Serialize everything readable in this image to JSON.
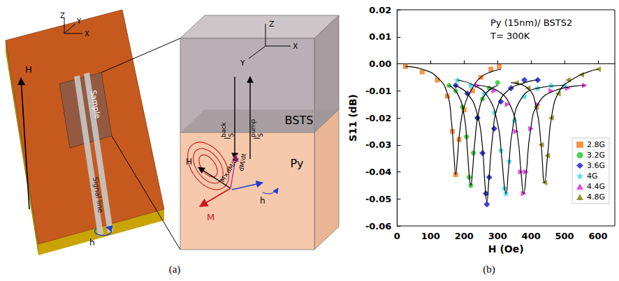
{
  "captions": [
    "(a)",
    "(b)"
  ],
  "diagram": {
    "board": {
      "axes": [
        "Z",
        "Y",
        "X"
      ],
      "field": "H",
      "sample": "Sample",
      "signal_line": "Signal line",
      "rf_field": "h"
    },
    "stack": {
      "axes": [
        "Z",
        "X",
        "Y"
      ],
      "top_layer": "BSTS",
      "bottom_layer": "Py",
      "spin_back": {
        "base": "I",
        "sub": "S",
        "sup": "back"
      },
      "spin_pump": {
        "base": "I",
        "sub": "S",
        "sup": "pump"
      },
      "field": "H",
      "magnetization": "M",
      "rf_field": "h",
      "damping": "dM/dt",
      "torque": "M×dM/dt"
    }
  },
  "chart_data": {
    "type": "scatter",
    "annotations": [
      "Py (15nm)/ BSTS2",
      "T= 300K"
    ],
    "x_label": "H (Oe)",
    "y_label": "S11 (dB)",
    "xlim": [
      0,
      650
    ],
    "xticks": [
      0,
      100,
      200,
      300,
      400,
      500,
      600
    ],
    "ylim": [
      -0.06,
      0.02
    ],
    "yticks": [
      0.02,
      0.01,
      {
        "value": 0,
        "label": "0.00"
      },
      -0.01,
      -0.02,
      -0.03,
      -0.04,
      -0.05,
      -0.06
    ],
    "grid": false,
    "legend": "lower right",
    "series": [
      {
        "name": "2.8G",
        "color": "#f07c18",
        "marker": "square",
        "x": [
          25,
          75,
          120,
          150,
          165,
          175,
          185,
          200,
          225,
          250,
          280,
          305
        ],
        "values": [
          -0.001,
          -0.003,
          -0.006,
          -0.012,
          -0.025,
          -0.041,
          -0.028,
          -0.017,
          -0.01,
          -0.005,
          -0.002,
          -0.001
        ]
      },
      {
        "name": "3.2G",
        "color": "#22c522",
        "marker": "circle",
        "x": [
          155,
          175,
          195,
          207,
          215,
          220,
          228,
          240,
          255,
          275,
          300
        ],
        "values": [
          -0.008,
          -0.01,
          -0.016,
          -0.027,
          -0.042,
          -0.045,
          -0.033,
          -0.02,
          -0.013,
          -0.009,
          -0.007
        ]
      },
      {
        "name": "3.6G",
        "color": "#1010c8",
        "marker": "diamond",
        "x": [
          175,
          210,
          240,
          255,
          265,
          268,
          275,
          290,
          310,
          340,
          380,
          420
        ],
        "values": [
          -0.008,
          -0.011,
          -0.02,
          -0.033,
          -0.048,
          -0.052,
          -0.042,
          -0.024,
          -0.014,
          -0.009,
          -0.006,
          -0.006
        ]
      },
      {
        "name": "4G",
        "color": "#20d8e8",
        "marker": "star",
        "x": [
          180,
          220,
          260,
          290,
          310,
          320,
          325,
          335,
          350,
          380,
          420,
          460,
          500
        ],
        "values": [
          -0.006,
          -0.008,
          -0.011,
          -0.018,
          -0.032,
          -0.046,
          -0.048,
          -0.036,
          -0.021,
          -0.012,
          -0.009,
          -0.008,
          -0.008
        ]
      },
      {
        "name": "4.4G",
        "color": "#e020e0",
        "marker": "triangle-right",
        "x": [
          240,
          290,
          330,
          355,
          370,
          378,
          385,
          400,
          420,
          460,
          510,
          560
        ],
        "values": [
          -0.008,
          -0.01,
          -0.015,
          -0.025,
          -0.04,
          -0.048,
          -0.04,
          -0.024,
          -0.015,
          -0.01,
          -0.009,
          -0.008
        ]
      },
      {
        "name": "4.8G",
        "color": "#7f7f00",
        "marker": "triangle-left",
        "x": [
          355,
          390,
          415,
          430,
          440,
          448,
          460,
          480,
          510,
          550,
          600
        ],
        "values": [
          -0.007,
          -0.009,
          -0.016,
          -0.03,
          -0.044,
          -0.034,
          -0.02,
          -0.011,
          -0.006,
          -0.004,
          -0.002
        ]
      },
      {
        "type": "line",
        "color": "#000000",
        "line_style": "solid",
        "x": [
          25,
          75,
          120,
          150,
          162,
          170,
          175,
          180,
          188,
          200,
          225,
          250,
          280,
          310
        ],
        "values": [
          -0.001,
          -0.002,
          -0.005,
          -0.011,
          -0.021,
          -0.034,
          -0.041,
          -0.035,
          -0.024,
          -0.016,
          -0.009,
          -0.005,
          -0.003,
          -0.002
        ]
      },
      {
        "type": "line",
        "color": "#000000",
        "line_style": "solid",
        "x": [
          155,
          180,
          200,
          210,
          215,
          220,
          225,
          232,
          245,
          265,
          300
        ],
        "values": [
          -0.008,
          -0.011,
          -0.019,
          -0.032,
          -0.041,
          -0.045,
          -0.04,
          -0.029,
          -0.017,
          -0.011,
          -0.008
        ]
      },
      {
        "type": "line",
        "color": "#000000",
        "line_style": "solid",
        "x": [
          170,
          210,
          240,
          255,
          262,
          268,
          274,
          285,
          300,
          330,
          380,
          420
        ],
        "values": [
          -0.008,
          -0.011,
          -0.019,
          -0.031,
          -0.044,
          -0.051,
          -0.043,
          -0.027,
          -0.016,
          -0.01,
          -0.007,
          -0.006
        ]
      },
      {
        "type": "line",
        "color": "#000000",
        "line_style": "solid",
        "x": [
          180,
          230,
          270,
          300,
          312,
          320,
          325,
          332,
          345,
          370,
          420,
          500
        ],
        "values": [
          -0.006,
          -0.008,
          -0.012,
          -0.022,
          -0.034,
          -0.045,
          -0.048,
          -0.04,
          -0.024,
          -0.013,
          -0.009,
          -0.008
        ]
      },
      {
        "type": "line",
        "color": "#000000",
        "line_style": "solid",
        "x": [
          240,
          300,
          340,
          360,
          370,
          378,
          386,
          398,
          420,
          470,
          560
        ],
        "values": [
          -0.008,
          -0.01,
          -0.016,
          -0.027,
          -0.04,
          -0.048,
          -0.04,
          -0.025,
          -0.015,
          -0.01,
          -0.008
        ]
      },
      {
        "type": "line",
        "color": "#000000",
        "line_style": "solid",
        "x": [
          340,
          390,
          415,
          430,
          440,
          450,
          462,
          485,
          520,
          570,
          600
        ],
        "values": [
          -0.007,
          -0.009,
          -0.016,
          -0.03,
          -0.044,
          -0.033,
          -0.019,
          -0.01,
          -0.006,
          -0.003,
          -0.002
        ]
      }
    ]
  }
}
